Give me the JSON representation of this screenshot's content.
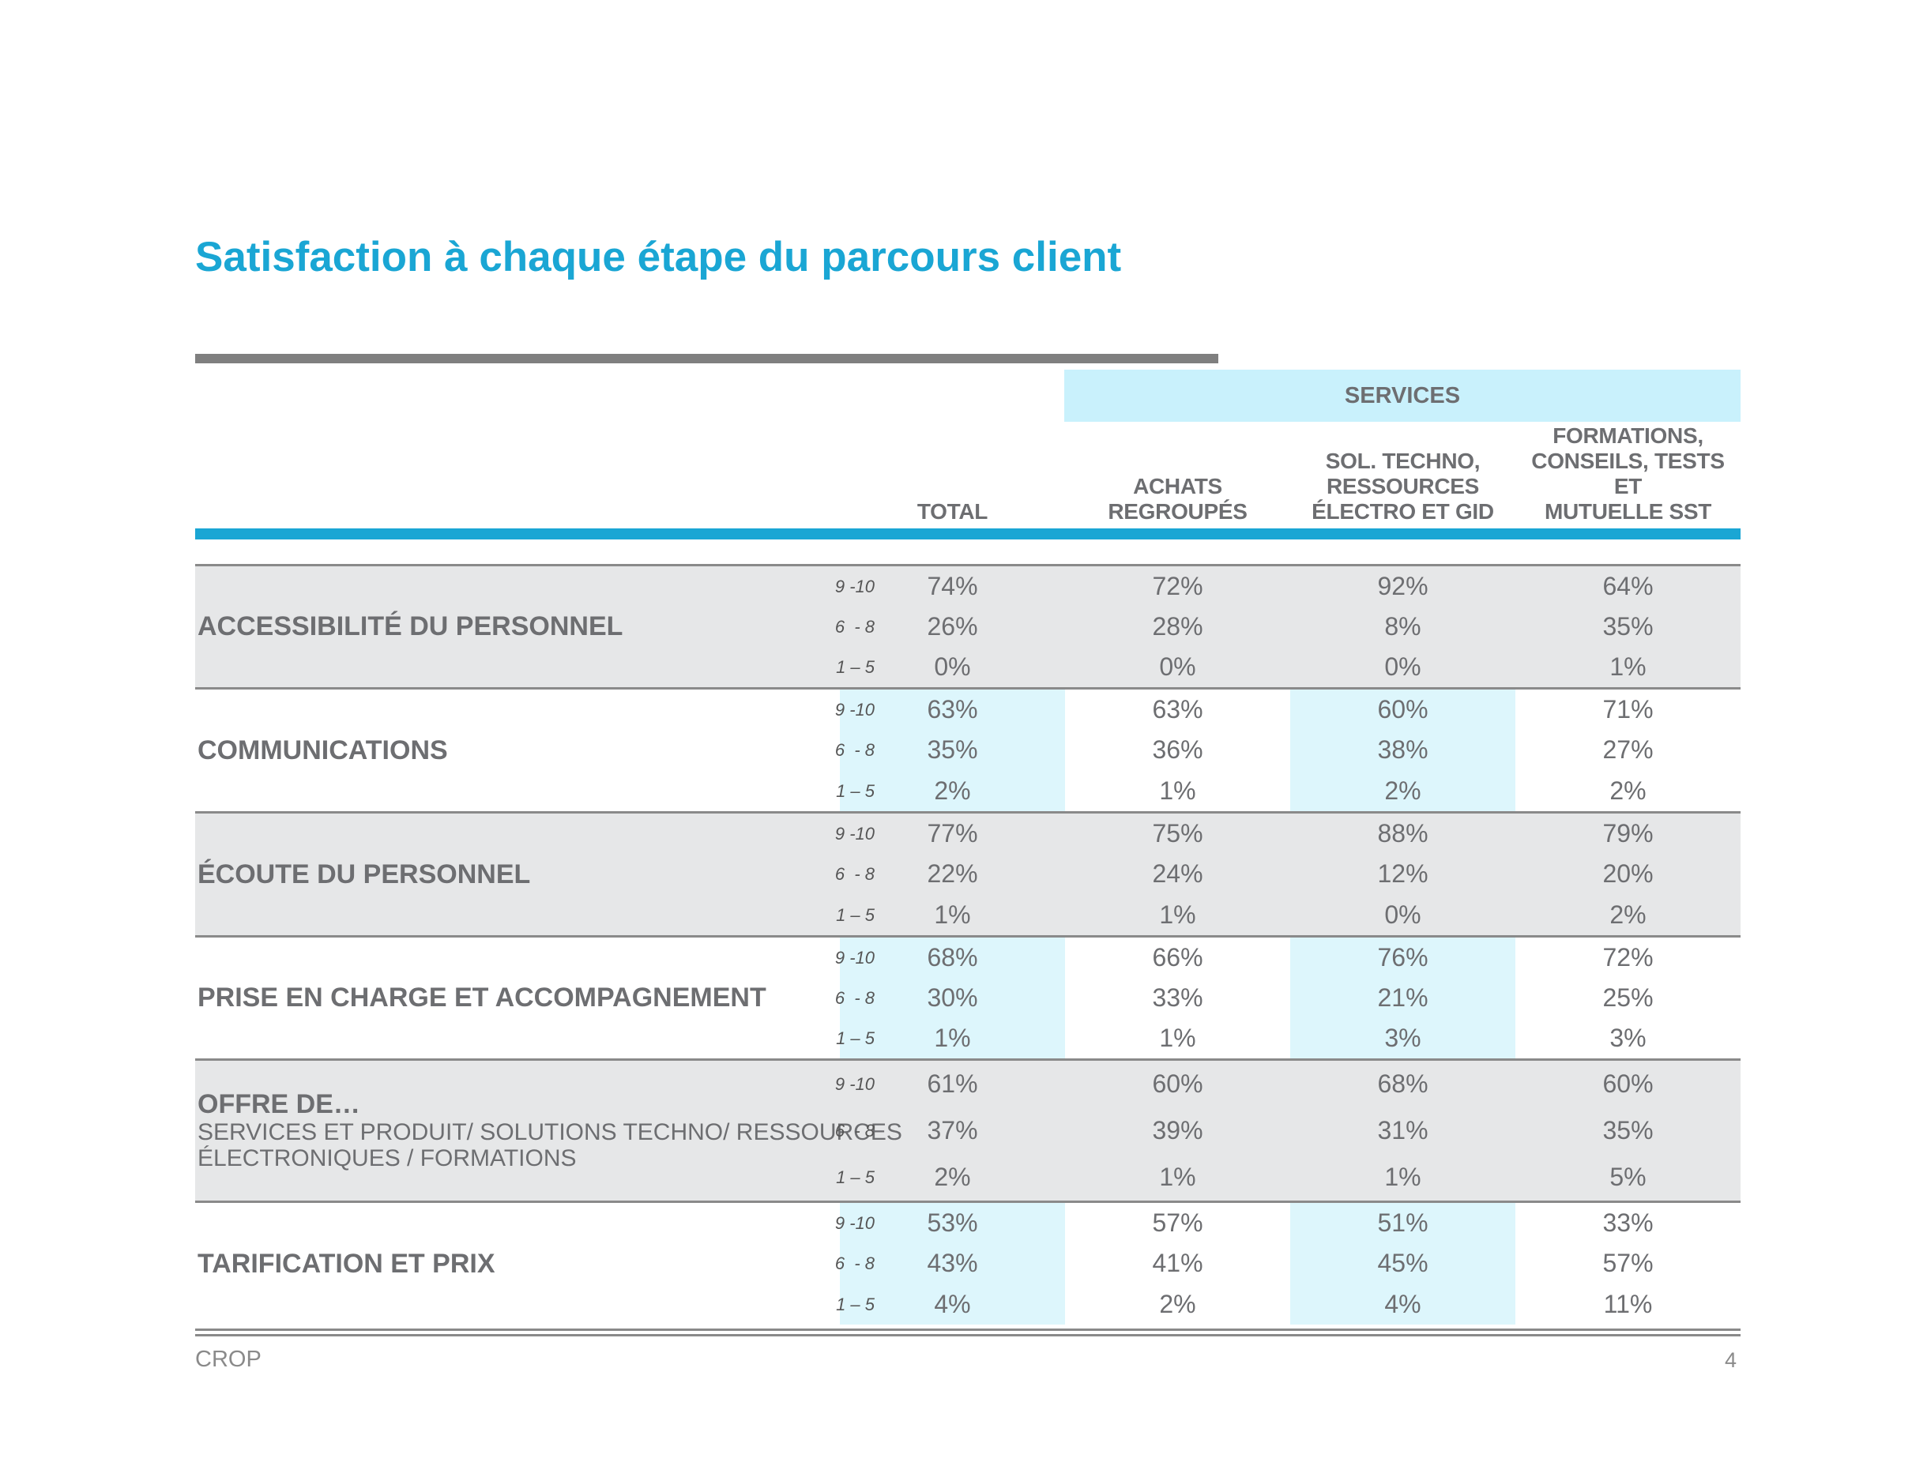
{
  "title": "Satisfaction à chaque étape du parcours client",
  "services_label": "SERVICES",
  "columns": [
    {
      "lines": [
        "TOTAL"
      ]
    },
    {
      "lines": [
        "ACHATS",
        "REGROUPÉS"
      ]
    },
    {
      "lines": [
        "SOL. TECHNO,",
        "RESSOURCES",
        "ÉLECTRO ET GID"
      ]
    },
    {
      "lines": [
        "FORMATIONS,",
        "CONSEILS, TESTS ET",
        "MUTUELLE SST"
      ]
    }
  ],
  "scale_labels": [
    "9 -10",
    "6  - 8",
    "1 – 5"
  ],
  "groups": [
    {
      "label": "ACCESSIBILITÉ DU PERSONNEL",
      "subtitle": "",
      "shaded": true,
      "rows": [
        [
          "74%",
          "72%",
          "92%",
          "64%"
        ],
        [
          "26%",
          "28%",
          "8%",
          "35%"
        ],
        [
          "0%",
          "0%",
          "0%",
          "1%"
        ]
      ]
    },
    {
      "label": "COMMUNICATIONS",
      "subtitle": "",
      "shaded": false,
      "rows": [
        [
          "63%",
          "63%",
          "60%",
          "71%"
        ],
        [
          "35%",
          "36%",
          "38%",
          "27%"
        ],
        [
          "2%",
          "1%",
          "2%",
          "2%"
        ]
      ]
    },
    {
      "label": "ÉCOUTE DU PERSONNEL",
      "subtitle": "",
      "shaded": true,
      "rows": [
        [
          "77%",
          "75%",
          "88%",
          "79%"
        ],
        [
          "22%",
          "24%",
          "12%",
          "20%"
        ],
        [
          "1%",
          "1%",
          "0%",
          "2%"
        ]
      ]
    },
    {
      "label": "PRISE EN CHARGE ET ACCOMPAGNEMENT",
      "subtitle": "",
      "shaded": false,
      "rows": [
        [
          "68%",
          "66%",
          "76%",
          "72%"
        ],
        [
          "30%",
          "33%",
          "21%",
          "25%"
        ],
        [
          "1%",
          "1%",
          "3%",
          "3%"
        ]
      ]
    },
    {
      "label": "OFFRE DE…",
      "subtitle": "SERVICES ET PRODUIT/ SOLUTIONS TECHNO/ RESSOURCES ÉLECTRONIQUES / FORMATIONS",
      "shaded": true,
      "rows": [
        [
          "61%",
          "60%",
          "68%",
          "60%"
        ],
        [
          "37%",
          "39%",
          "31%",
          "35%"
        ],
        [
          "2%",
          "1%",
          "1%",
          "5%"
        ]
      ]
    },
    {
      "label": "TARIFICATION ET PRIX",
      "subtitle": "",
      "shaded": false,
      "rows": [
        [
          "53%",
          "57%",
          "51%",
          "33%"
        ],
        [
          "43%",
          "41%",
          "45%",
          "57%"
        ],
        [
          "4%",
          "2%",
          "4%",
          "11%"
        ]
      ]
    }
  ],
  "footer": {
    "source": "CROP",
    "page": "4"
  },
  "colors": {
    "accent": "#1aa6d4",
    "services_band": "#c9f1fc",
    "highlight": "#ddf6fc",
    "shaded_row": "#e6e7e8"
  }
}
